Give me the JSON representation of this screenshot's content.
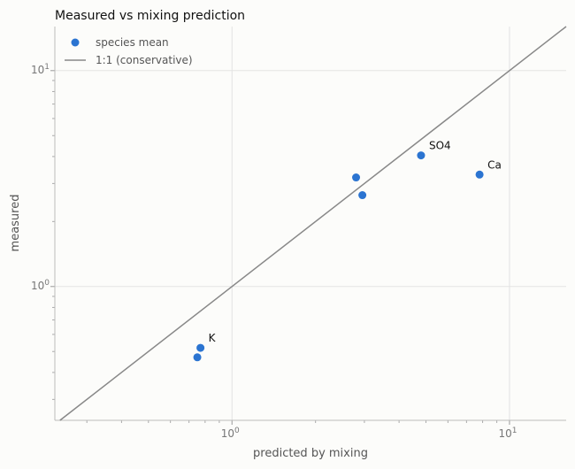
{
  "chart_data": {
    "type": "scatter",
    "title": "Measured vs mixing prediction",
    "xlabel": "predicted by mixing",
    "ylabel": "measured",
    "xscale": "log",
    "yscale": "log",
    "xlim": [
      0.23,
      16
    ],
    "ylim": [
      0.24,
      16
    ],
    "grid": true,
    "legend_position": "top-left",
    "x_ticks": [
      {
        "value": 1,
        "base": "10",
        "exp": "0"
      },
      {
        "value": 10,
        "base": "10",
        "exp": "1"
      }
    ],
    "y_ticks": [
      {
        "value": 1,
        "base": "10",
        "exp": "0"
      },
      {
        "value": 10,
        "base": "10",
        "exp": "1"
      }
    ],
    "series": [
      {
        "name": "species mean",
        "color": "#2b74d1",
        "points": [
          {
            "x": 0.75,
            "y": 0.47,
            "label": ""
          },
          {
            "x": 0.77,
            "y": 0.52,
            "label": "K"
          },
          {
            "x": 2.8,
            "y": 3.2,
            "label": ""
          },
          {
            "x": 2.95,
            "y": 2.65,
            "label": ""
          },
          {
            "x": 4.8,
            "y": 4.05,
            "label": "SO4"
          },
          {
            "x": 7.8,
            "y": 3.3,
            "label": "Ca"
          }
        ]
      }
    ],
    "reference_line": {
      "name": "1:1 (conservative)",
      "color": "#888888"
    }
  }
}
